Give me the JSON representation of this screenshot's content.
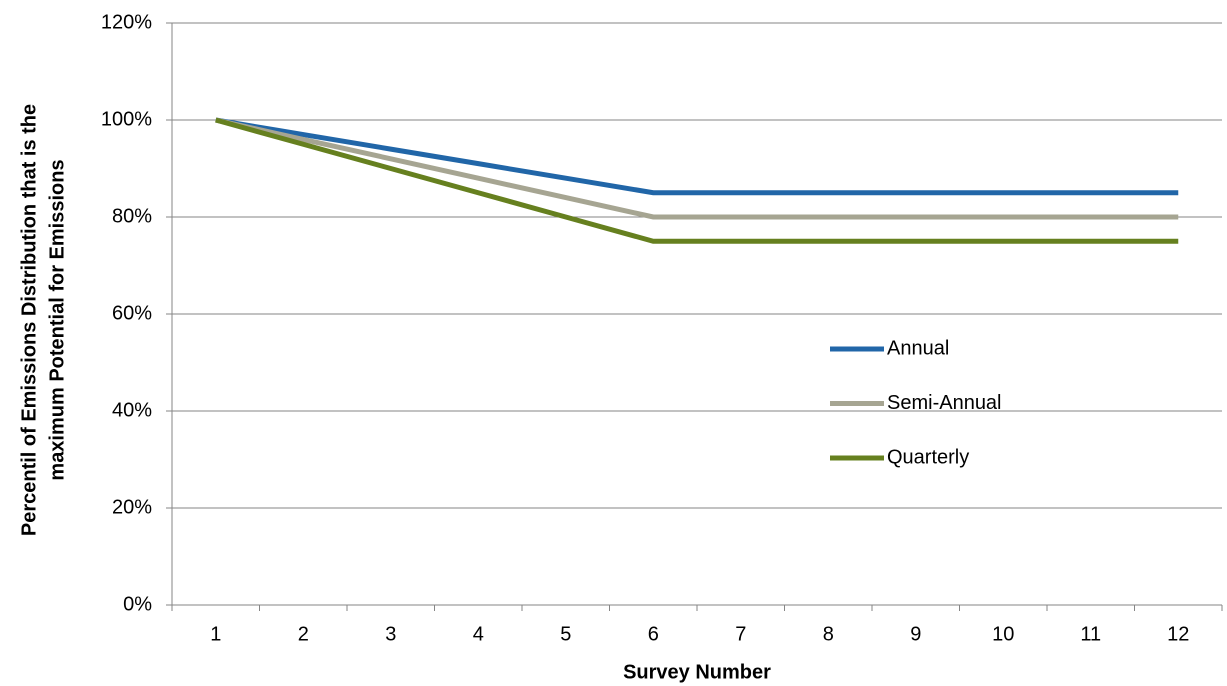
{
  "chart_data": {
    "type": "line",
    "ylabel": [
      "Percentil of Emissions Distribution that is the",
      "maximum Potential for Emissions"
    ],
    "xlabel": "Survey Number",
    "categories": [
      "1",
      "2",
      "3",
      "4",
      "5",
      "6",
      "7",
      "8",
      "9",
      "10",
      "11",
      "12"
    ],
    "series": [
      {
        "name": "Annual",
        "color": "#2166a8",
        "values": [
          100,
          97,
          94,
          91,
          88,
          85,
          85,
          85,
          85,
          85,
          85,
          85
        ]
      },
      {
        "name": "Semi-Annual",
        "color": "#a6a592",
        "values": [
          100,
          96,
          92,
          88,
          84,
          80,
          80,
          80,
          80,
          80,
          80,
          80
        ]
      },
      {
        "name": "Quarterly",
        "color": "#66801f",
        "values": [
          100,
          95,
          90,
          85,
          80,
          75,
          75,
          75,
          75,
          75,
          75,
          75
        ]
      }
    ],
    "ylim": [
      0,
      120
    ],
    "yticks": [
      {
        "value": 0,
        "label": "0%"
      },
      {
        "value": 20,
        "label": "20%"
      },
      {
        "value": 40,
        "label": "40%"
      },
      {
        "value": 60,
        "label": "60%"
      },
      {
        "value": 80,
        "label": "80%"
      },
      {
        "value": 100,
        "label": "100%"
      },
      {
        "value": 120,
        "label": "120%"
      }
    ],
    "grid": true
  }
}
